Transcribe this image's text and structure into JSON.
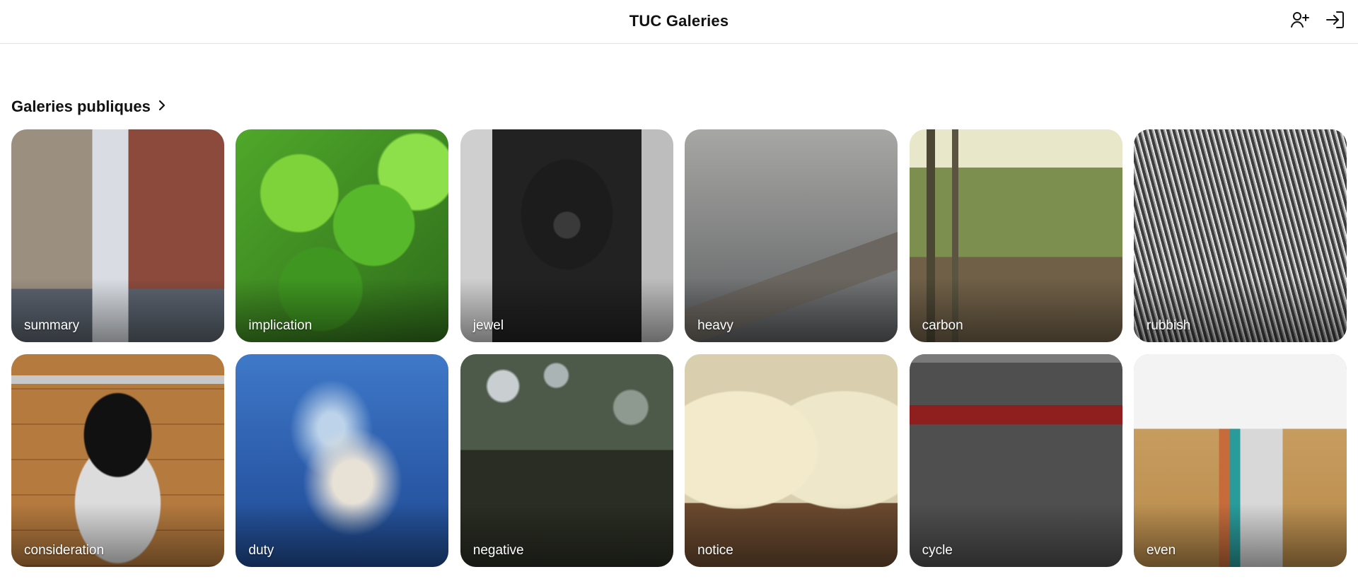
{
  "header": {
    "title": "TUC Galeries",
    "actions": [
      {
        "icon": "add-user-icon"
      },
      {
        "icon": "login-icon"
      }
    ]
  },
  "section": {
    "title": "Galeries publiques",
    "icon": "chevron-right-icon"
  },
  "galleries": [
    {
      "label": "summary"
    },
    {
      "label": "implication"
    },
    {
      "label": "jewel"
    },
    {
      "label": "heavy"
    },
    {
      "label": "carbon"
    },
    {
      "label": "rubbish"
    },
    {
      "label": "consideration"
    },
    {
      "label": "duty"
    },
    {
      "label": "negative"
    },
    {
      "label": "notice"
    },
    {
      "label": "cycle"
    },
    {
      "label": "even"
    }
  ]
}
